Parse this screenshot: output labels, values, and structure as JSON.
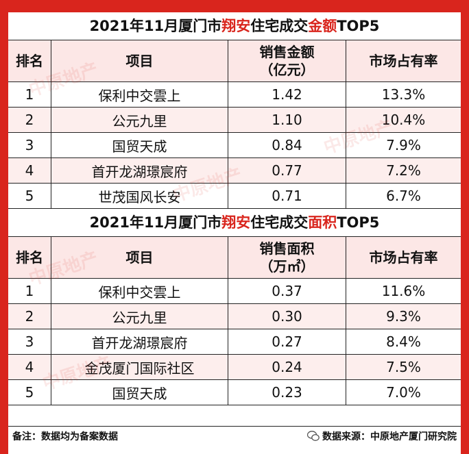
{
  "sales_section": {
    "title_pre": "2021年11月厦门市",
    "title_highlight1": "翔安",
    "title_mid": "住宅成交",
    "title_highlight2": "金额",
    "title_post": "TOP5",
    "headers": {
      "rank": "排名",
      "project": "项目",
      "metric_line1": "销售金额",
      "metric_line2": "（亿元）",
      "share": "市场占有率"
    },
    "rows": [
      {
        "rank": "1",
        "project": "保利中交雲上",
        "value": "1.42",
        "share": "13.3%"
      },
      {
        "rank": "2",
        "project": "公元九里",
        "value": "1.10",
        "share": "10.4%"
      },
      {
        "rank": "3",
        "project": "国贸天成",
        "value": "0.84",
        "share": "7.9%"
      },
      {
        "rank": "4",
        "project": "首开龙湖璟宸府",
        "value": "0.77",
        "share": "7.2%"
      },
      {
        "rank": "5",
        "project": "世茂国风长安",
        "value": "0.71",
        "share": "6.7%"
      }
    ]
  },
  "area_section": {
    "title_pre": "2021年11月厦门市",
    "title_highlight1": "翔安",
    "title_mid": "住宅成交",
    "title_highlight2": "面积",
    "title_post": "TOP5",
    "headers": {
      "rank": "排名",
      "project": "项目",
      "metric_line1": "销售面积",
      "metric_line2": "（万㎡）",
      "share": "市场占有率"
    },
    "rows": [
      {
        "rank": "1",
        "project": "保利中交雲上",
        "value": "0.37",
        "share": "11.6%"
      },
      {
        "rank": "2",
        "project": "公元九里",
        "value": "0.30",
        "share": "9.3%"
      },
      {
        "rank": "3",
        "project": "首开龙湖璟宸府",
        "value": "0.27",
        "share": "8.4%"
      },
      {
        "rank": "4",
        "project": "金茂厦门国际社区",
        "value": "0.24",
        "share": "7.5%"
      },
      {
        "rank": "5",
        "project": "国贸天成",
        "value": "0.23",
        "share": "7.0%"
      }
    ]
  },
  "footer": {
    "note": "备注：数据均为备案数据",
    "source": "数据来源：中原地产厦门研究院"
  },
  "watermark_text": "中原地产",
  "colors": {
    "accent": "#d9251d",
    "header_bg": "#fce7e6",
    "stripe_bg": "#fdeeed"
  }
}
